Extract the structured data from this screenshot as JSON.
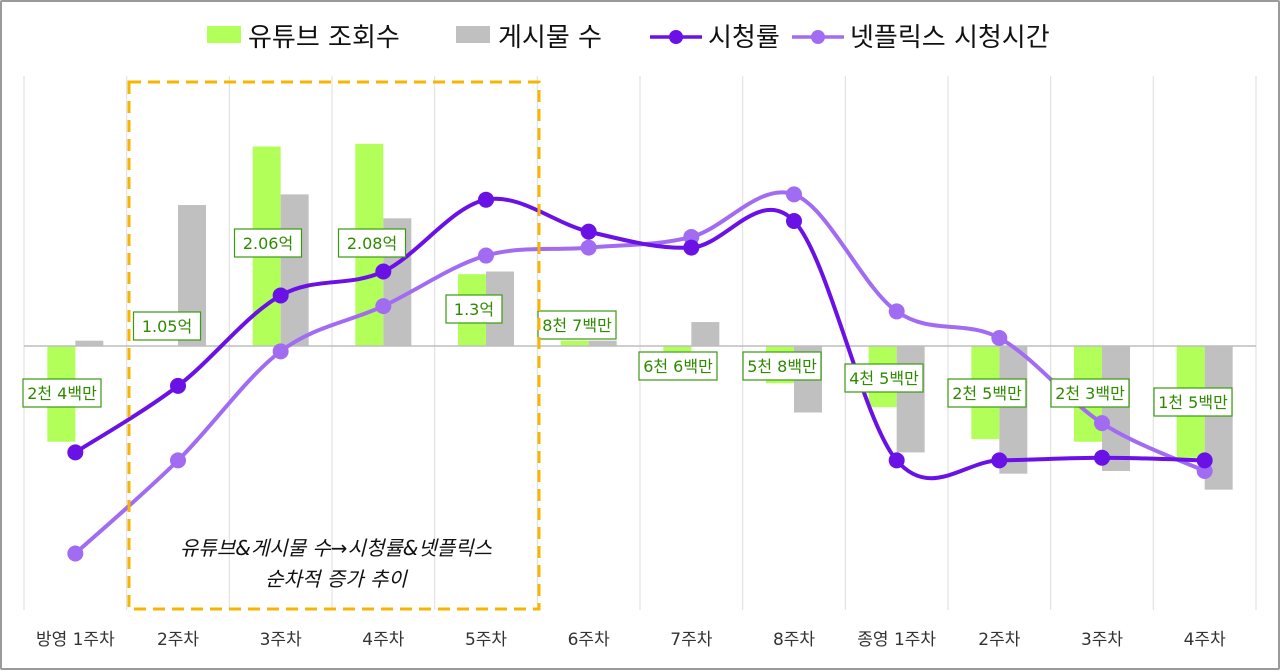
{
  "chart_data": {
    "type": "bar+line",
    "title": "",
    "categories": [
      "방영 1주차",
      "2주차",
      "3주차",
      "4주차",
      "5주차",
      "6주차",
      "7주차",
      "8주차",
      "종영 1주차",
      "2주차",
      "3주차",
      "4주차"
    ],
    "ylim": [
      -1.0,
      1.0
    ],
    "grid": "vertical",
    "legend_position": "top",
    "series": [
      {
        "name": "유튜브 조회수",
        "kind": "bar",
        "color": "#b2ff59",
        "values": [
          -0.36,
          0.0,
          0.75,
          0.76,
          0.27,
          0.02,
          -0.02,
          -0.14,
          -0.23,
          -0.35,
          -0.36,
          -0.42
        ]
      },
      {
        "name": "게시물 수",
        "kind": "bar",
        "color": "#c0c0c0",
        "values": [
          0.02,
          0.53,
          0.57,
          0.48,
          0.28,
          0.02,
          0.09,
          -0.25,
          -0.4,
          -0.48,
          -0.47,
          -0.54
        ]
      },
      {
        "name": "시청률",
        "kind": "line",
        "color": "#6a11e6",
        "values": [
          -0.4,
          -0.15,
          0.19,
          0.28,
          0.55,
          0.43,
          0.37,
          0.47,
          -0.43,
          -0.43,
          -0.42,
          -0.43
        ]
      },
      {
        "name": "넷플릭스 시청시간",
        "kind": "line",
        "color": "#a26cf2",
        "values": [
          -0.78,
          -0.43,
          -0.02,
          0.15,
          0.34,
          0.37,
          0.41,
          0.57,
          0.13,
          0.03,
          -0.29,
          -0.47
        ]
      }
    ],
    "data_labels": [
      "2천 4백만",
      "1.05억",
      "2.06억",
      "2.08억",
      "1.3억",
      "8천 7백만",
      "6천 6백만",
      "5천 8백만",
      "4천 5백만",
      "2천 5백만",
      "2천 3백만",
      "1천 5백만"
    ],
    "annotation": {
      "line1": "유튜브&게시물 수→시청률&넷플릭스",
      "line2": "순차적 증가 추이"
    }
  }
}
